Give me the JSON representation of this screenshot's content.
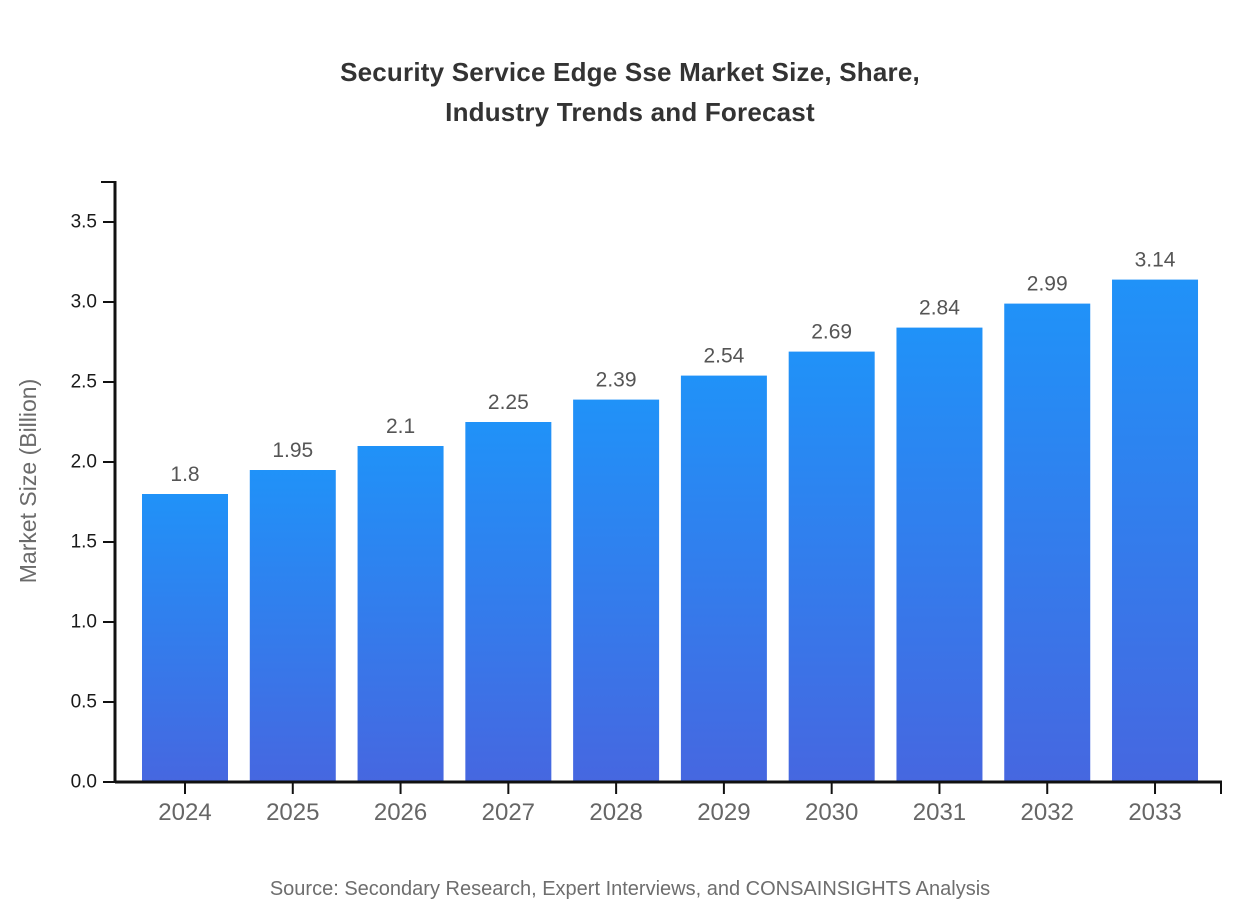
{
  "chart_data": {
    "type": "bar",
    "title": "Security Service Edge Sse Market Size, Share, Industry Trends and Forecast",
    "title_lines": [
      "Security Service Edge Sse Market Size, Share,",
      "Industry Trends and Forecast"
    ],
    "categories": [
      "2024",
      "2025",
      "2026",
      "2027",
      "2028",
      "2029",
      "2030",
      "2031",
      "2032",
      "2033"
    ],
    "values": [
      1.8,
      1.95,
      2.1,
      2.25,
      2.39,
      2.54,
      2.69,
      2.84,
      2.99,
      3.14
    ],
    "xlabel": "",
    "ylabel": "Market Size (Billion)",
    "ylim": [
      0,
      3.5
    ],
    "ytick_step": 0.5,
    "ytick_labels": [
      "0.0",
      "0.5",
      "1.0",
      "1.5",
      "2.0",
      "2.5",
      "3.0",
      "3.5"
    ],
    "grid": false,
    "legend": false,
    "colors": {
      "bar_gradient_top": "#2092F8",
      "bar_gradient_bottom": "#4667E0",
      "axis_line": "#111111",
      "ytick_label": "#1a1a1a",
      "xtick_label": "#666666",
      "value_label": "#555555",
      "axis_title": "#6b6b6b",
      "title_text": "#333333"
    }
  },
  "footer": {
    "source": "Source: Secondary Research, Expert Interviews, and CONSAINSIGHTS Analysis"
  }
}
